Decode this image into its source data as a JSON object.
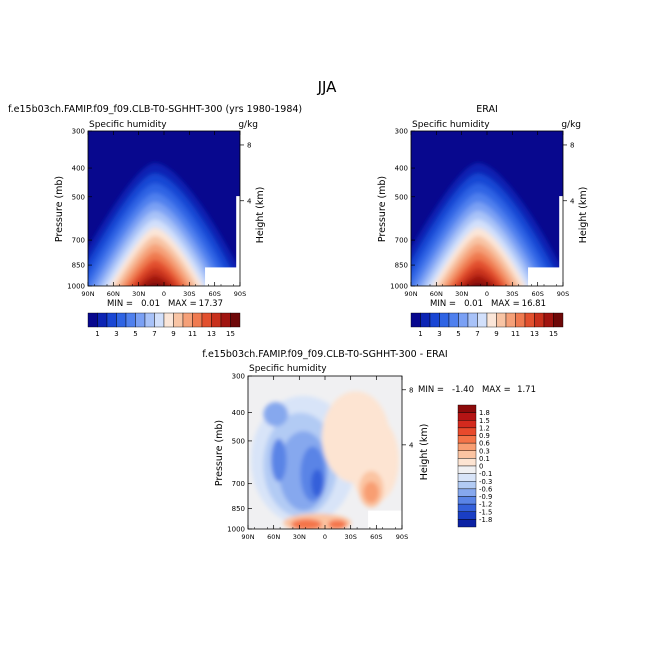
{
  "page": {
    "season": "JJA"
  },
  "chart_data": [
    {
      "type": "heatmap",
      "id": "model",
      "title": "f.e15b03ch.FAMIP.f09_f09.CLB-T0-SGHHT-300 (yrs 1980-1984)",
      "left_label": "Specific humidity",
      "right_label": "g/kg",
      "xlabel": "",
      "ylabel": "Pressure (mb)",
      "y2label": "Height (km)",
      "x_ticks": [
        "90N",
        "60N",
        "30N",
        "0",
        "30S",
        "60S",
        "90S"
      ],
      "y_ticks": [
        300,
        400,
        500,
        700,
        850,
        1000
      ],
      "y2_ticks": [
        8,
        4
      ],
      "stats": {
        "min_label": "MIN =",
        "min": "0.01",
        "max_label": "MAX =",
        "max": "17.37"
      },
      "colorbar": {
        "levels": [
          1,
          2,
          3,
          4,
          5,
          6,
          7,
          8,
          9,
          10,
          11,
          12,
          13,
          14,
          15
        ],
        "labels": [
          "1",
          "3",
          "5",
          "7",
          "9",
          "11",
          "13",
          "15"
        ],
        "colors": [
          "#08088e",
          "#0c24b4",
          "#1946d4",
          "#2f64e4",
          "#4f80ee",
          "#7aa0f4",
          "#a8c2f8",
          "#d2e0fb",
          "#fbe6d8",
          "#f8c4a4",
          "#f5a078",
          "#ef7a50",
          "#e2502e",
          "#c8301c",
          "#a01410",
          "#6e0808"
        ]
      },
      "masked_region": "southern high latitudes, near-surface levels"
    },
    {
      "type": "heatmap",
      "id": "obs",
      "title": "ERAI",
      "left_label": "Specific humidity",
      "right_label": "g/kg",
      "xlabel": "",
      "ylabel": "Pressure (mb)",
      "y2label": "Height (km)",
      "x_ticks": [
        "90N",
        "60N",
        "30N",
        "0",
        "30S",
        "60S",
        "90S"
      ],
      "y_ticks": [
        300,
        400,
        500,
        700,
        850,
        1000
      ],
      "y2_ticks": [
        8,
        4
      ],
      "stats": {
        "min_label": "MIN =",
        "min": "0.01",
        "max_label": "MAX =",
        "max": "16.81"
      },
      "colorbar": {
        "levels": [
          1,
          2,
          3,
          4,
          5,
          6,
          7,
          8,
          9,
          10,
          11,
          12,
          13,
          14,
          15
        ],
        "labels": [
          "1",
          "3",
          "5",
          "7",
          "9",
          "11",
          "13",
          "15"
        ],
        "colors": [
          "#08088e",
          "#0c24b4",
          "#1946d4",
          "#2f64e4",
          "#4f80ee",
          "#7aa0f4",
          "#a8c2f8",
          "#d2e0fb",
          "#fbe6d8",
          "#f8c4a4",
          "#f5a078",
          "#ef7a50",
          "#e2502e",
          "#c8301c",
          "#a01410",
          "#6e0808"
        ]
      },
      "masked_region": "southern high latitudes, near-surface levels"
    },
    {
      "type": "heatmap",
      "id": "diff",
      "title": "f.e15b03ch.FAMIP.f09_f09.CLB-T0-SGHHT-300 - ERAI",
      "left_label": "Specific humidity",
      "right_label": "",
      "xlabel": "",
      "ylabel": "Pressure (mb)",
      "y2label": "Height (km)",
      "x_ticks": [
        "90N",
        "60N",
        "30N",
        "0",
        "30S",
        "60S",
        "90S"
      ],
      "y_ticks": [
        300,
        400,
        500,
        700,
        850,
        1000
      ],
      "y2_ticks": [
        8,
        4
      ],
      "stats": {
        "min_label": "MIN =",
        "min": "-1.40",
        "max_label": "MAX =",
        "max": "1.71"
      },
      "colorbar": {
        "orientation": "vertical",
        "labels": [
          "1.8",
          "1.5",
          "1.2",
          "0.9",
          "0.6",
          "0.3",
          "0.1",
          "0",
          "-0.1",
          "-0.3",
          "-0.6",
          "-0.9",
          "-1.2",
          "-1.5",
          "-1.8"
        ],
        "colors": [
          "#8c0a0a",
          "#b41414",
          "#d42a1e",
          "#e84a2c",
          "#f47448",
          "#f89e72",
          "#fbc4a2",
          "#fde4d2",
          "#f0f0f2",
          "#d8e4f8",
          "#b2cbf4",
          "#86a8ee",
          "#5a84e6",
          "#3460da",
          "#1a3ec4",
          "#0c22a4"
        ]
      },
      "masked_region": "southern high latitudes, near-surface levels"
    }
  ]
}
